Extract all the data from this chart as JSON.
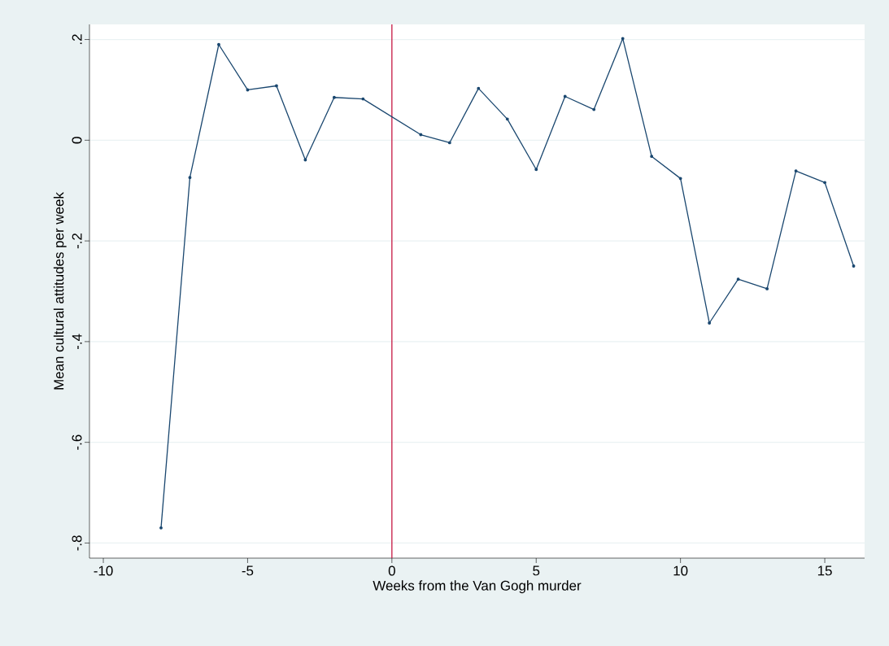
{
  "chart_data": {
    "type": "line",
    "xlabel": "Weeks from the Van Gogh murder",
    "ylabel": "Mean cultural attitudes per week",
    "x": [
      -8,
      -7,
      -6,
      -5,
      -4,
      -3,
      -2,
      -1,
      1,
      2,
      3,
      4,
      5,
      6,
      7,
      8,
      9,
      10,
      11,
      12,
      13,
      14,
      15,
      16
    ],
    "series": [
      {
        "color": "#1a476f",
        "values": [
          -0.77,
          -0.074,
          0.19,
          0.1,
          0.108,
          -0.039,
          0.085,
          0.082,
          0.011,
          -0.005,
          0.103,
          0.042,
          -0.058,
          0.087,
          0.061,
          0.202,
          -0.032,
          -0.076,
          -0.363,
          -0.276,
          -0.295,
          -0.061,
          -0.084,
          -0.25
        ]
      }
    ],
    "xlim": [
      -10.48,
      16.38
    ],
    "ylim": [
      -0.83,
      0.23
    ],
    "xticks": [
      -10,
      -5,
      0,
      5,
      10,
      15
    ],
    "yticks": [
      {
        "value": -0.8,
        "label": "-.8"
      },
      {
        "value": -0.6,
        "label": "-.6"
      },
      {
        "value": -0.4,
        "label": "-.4"
      },
      {
        "value": -0.2,
        "label": "-.2"
      },
      0,
      {
        "value": 0.2,
        "label": ".2"
      }
    ],
    "ref_lines": [
      {
        "axis": "x",
        "value": 0,
        "color": "#c10534"
      }
    ],
    "grid": "y",
    "marker": "circle",
    "line_style": "solid"
  }
}
